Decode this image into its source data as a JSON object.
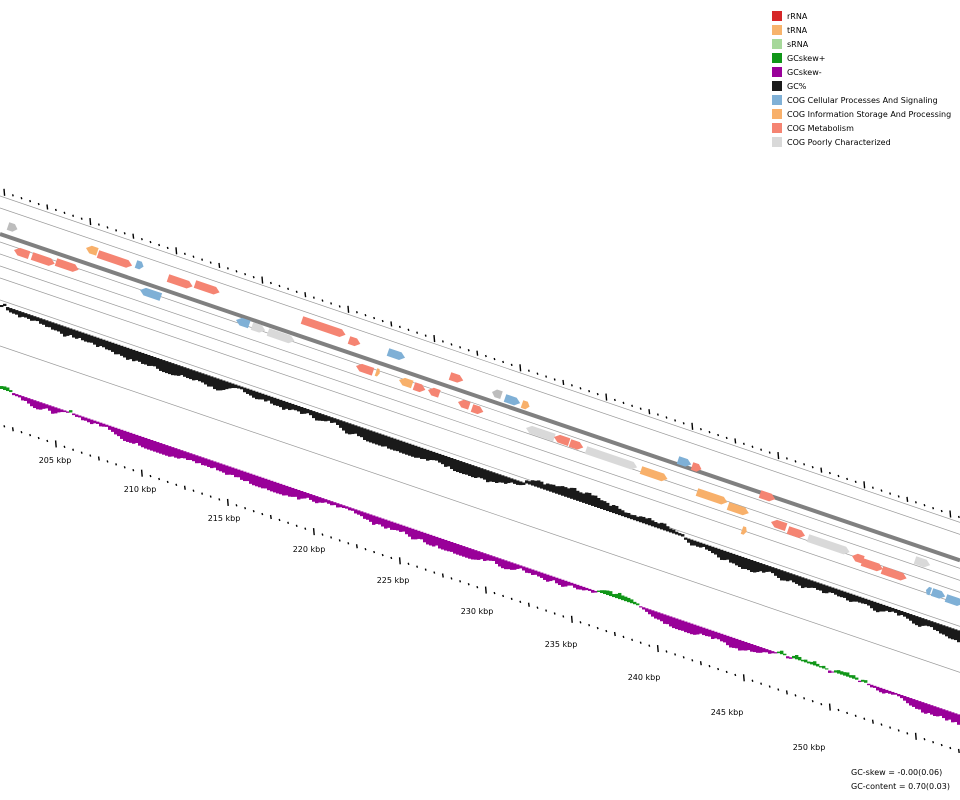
{
  "legend": [
    {
      "label": "rRNA",
      "color": "#d62728"
    },
    {
      "label": "tRNA",
      "color": "#f7b36b"
    },
    {
      "label": "sRNA",
      "color": "#a6d89a"
    },
    {
      "label": "GCskew+",
      "color": "#109618"
    },
    {
      "label": "GCskew-",
      "color": "#990099"
    },
    {
      "label": "GC%",
      "color": "#1a1a1a"
    },
    {
      "label": "COG Cellular Processes And Signaling",
      "color": "#7fb0d6"
    },
    {
      "label": "COG Information Storage And Processing",
      "color": "#f8b06a"
    },
    {
      "label": "COG Metabolism",
      "color": "#f58472"
    },
    {
      "label": "COG Poorly Characterized",
      "color": "#d9d9d9"
    }
  ],
  "colors": {
    "backbone": "#808080",
    "ring_line": "#9a9a9a",
    "tick": "#000000",
    "gc": "#1a1a1a",
    "skew_pos": "#109618",
    "skew_neg": "#990099",
    "unknown_gene": "#bdbdbd"
  },
  "kbp_labels": [
    "205 kbp",
    "210 kbp",
    "215 kbp",
    "220 kbp",
    "225 kbp",
    "230 kbp",
    "235 kbp",
    "240 kbp",
    "245 kbp",
    "250 kbp"
  ],
  "stats": {
    "gc_skew": "GC-skew = -0.00(0.06)",
    "gc_content": "GC-content = 0.70(0.03)"
  }
}
